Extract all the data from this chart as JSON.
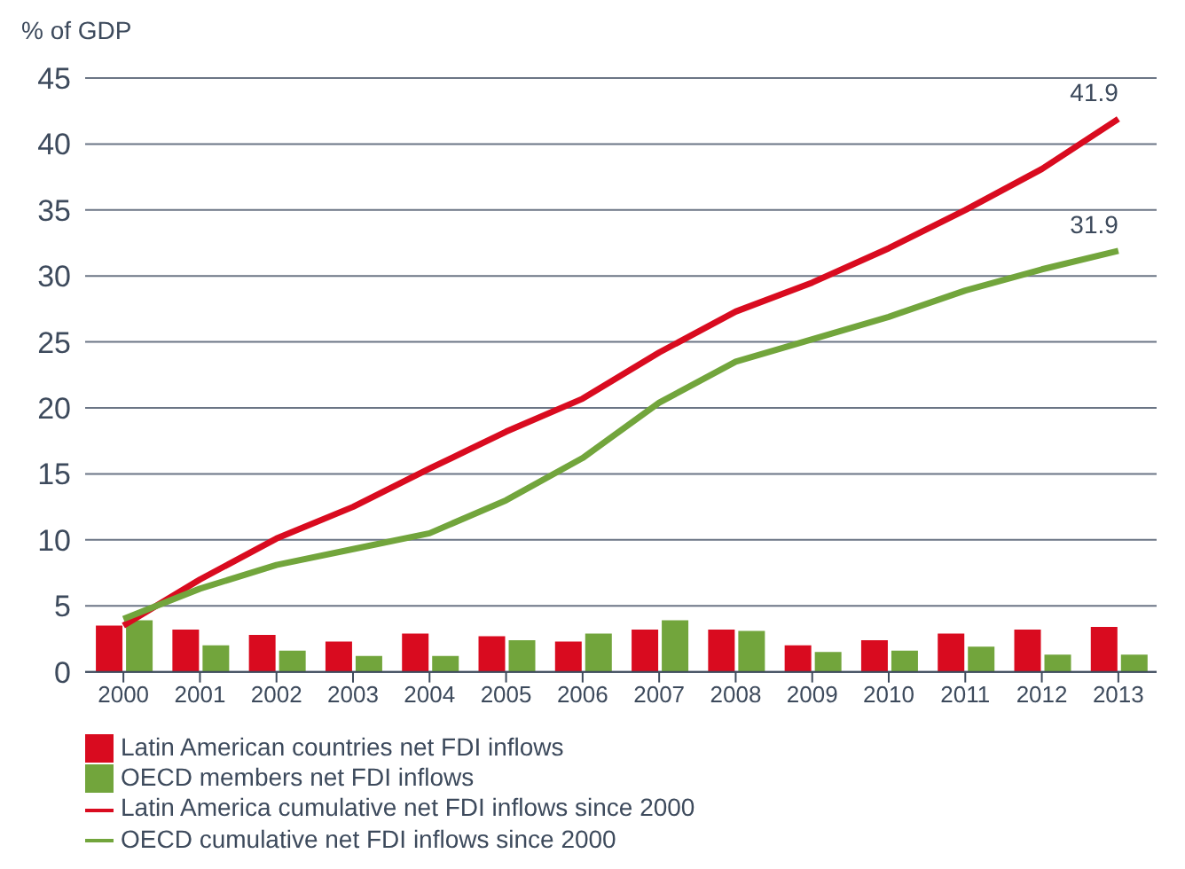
{
  "chart_data": {
    "type": "bar",
    "ylabel": "% of GDP",
    "categories": [
      "2000",
      "2001",
      "2002",
      "2003",
      "2004",
      "2005",
      "2006",
      "2007",
      "2008",
      "2009",
      "2010",
      "2011",
      "2012",
      "2013"
    ],
    "series": [
      {
        "name": "Latin American countries net FDI inflows",
        "color": "#d90b1f",
        "values": [
          3.5,
          3.2,
          2.8,
          2.3,
          2.9,
          2.7,
          2.3,
          3.2,
          3.2,
          2.0,
          2.4,
          2.9,
          3.2,
          3.4
        ]
      },
      {
        "name": "OECD members net FDI inflows",
        "color": "#72a53c",
        "values": [
          3.9,
          2.0,
          1.6,
          1.2,
          1.2,
          2.4,
          2.9,
          3.9,
          3.1,
          1.5,
          1.6,
          1.9,
          1.3,
          1.3
        ]
      },
      {
        "name": "Latin America cumulative net FDI inflows since 2000",
        "type": "line",
        "color": "#d90b1f",
        "values": [
          3.5,
          7.0,
          10.1,
          12.5,
          15.4,
          18.2,
          20.7,
          24.2,
          27.3,
          29.5,
          32.1,
          35.0,
          38.1,
          41.9
        ],
        "value_labels": [
          null,
          null,
          null,
          null,
          null,
          null,
          null,
          null,
          null,
          null,
          null,
          null,
          null,
          "41.9"
        ]
      },
      {
        "name": "OECD cumulative net FDI inflows since 2000",
        "type": "line",
        "color": "#72a53c",
        "values": [
          4.0,
          6.3,
          8.1,
          9.3,
          10.5,
          13.0,
          16.2,
          20.4,
          23.5,
          25.2,
          26.9,
          28.9,
          30.5,
          31.9
        ],
        "value_labels": [
          null,
          null,
          null,
          null,
          null,
          null,
          null,
          null,
          null,
          null,
          null,
          null,
          null,
          "31.9"
        ]
      }
    ],
    "ylim": [
      0,
      45
    ],
    "yticks": [
      0,
      5,
      10,
      15,
      20,
      25,
      30,
      35,
      40,
      45
    ],
    "grid": "y",
    "legend": "bottom",
    "marker": "none",
    "line_style": "solid"
  }
}
